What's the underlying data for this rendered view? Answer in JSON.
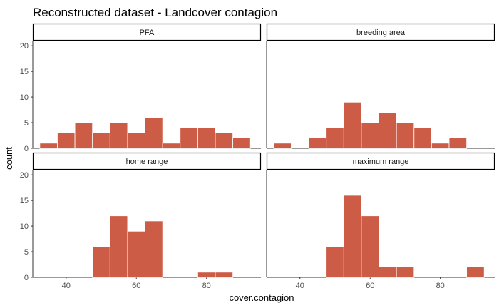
{
  "chart_data": {
    "type": "bar",
    "title": "Reconstructed dataset - Landcover contagion",
    "xlabel": "cover.contagion",
    "ylabel": "count",
    "xlim": [
      30.5,
      95.5
    ],
    "ylim": [
      0,
      21
    ],
    "xticks": [
      40,
      60,
      80
    ],
    "yticks": [
      0,
      5,
      10,
      15,
      20
    ],
    "bin_width": 5,
    "grid": false,
    "bar_color": "#cd5c47",
    "bar_outline_color": "#ffffff",
    "panel_border_color": "#333333",
    "facets": [
      {
        "label": "PFA",
        "bins": [
          {
            "x": 35,
            "count": 1
          },
          {
            "x": 40,
            "count": 3
          },
          {
            "x": 45,
            "count": 5
          },
          {
            "x": 50,
            "count": 3
          },
          {
            "x": 55,
            "count": 5
          },
          {
            "x": 60,
            "count": 3
          },
          {
            "x": 65,
            "count": 6
          },
          {
            "x": 70,
            "count": 1
          },
          {
            "x": 75,
            "count": 4
          },
          {
            "x": 80,
            "count": 4
          },
          {
            "x": 85,
            "count": 3
          },
          {
            "x": 90,
            "count": 2
          }
        ]
      },
      {
        "label": "breeding area",
        "bins": [
          {
            "x": 35,
            "count": 1
          },
          {
            "x": 45,
            "count": 2
          },
          {
            "x": 50,
            "count": 4
          },
          {
            "x": 55,
            "count": 9
          },
          {
            "x": 60,
            "count": 5
          },
          {
            "x": 65,
            "count": 7
          },
          {
            "x": 70,
            "count": 5
          },
          {
            "x": 75,
            "count": 4
          },
          {
            "x": 80,
            "count": 1
          },
          {
            "x": 85,
            "count": 2
          }
        ]
      },
      {
        "label": "home range",
        "bins": [
          {
            "x": 50,
            "count": 6
          },
          {
            "x": 55,
            "count": 12
          },
          {
            "x": 60,
            "count": 9
          },
          {
            "x": 65,
            "count": 11
          },
          {
            "x": 80,
            "count": 1
          },
          {
            "x": 85,
            "count": 1
          }
        ]
      },
      {
        "label": "maximum range",
        "bins": [
          {
            "x": 50,
            "count": 6
          },
          {
            "x": 55,
            "count": 16
          },
          {
            "x": 60,
            "count": 12
          },
          {
            "x": 65,
            "count": 2
          },
          {
            "x": 70,
            "count": 2
          },
          {
            "x": 90,
            "count": 2
          }
        ]
      }
    ]
  }
}
